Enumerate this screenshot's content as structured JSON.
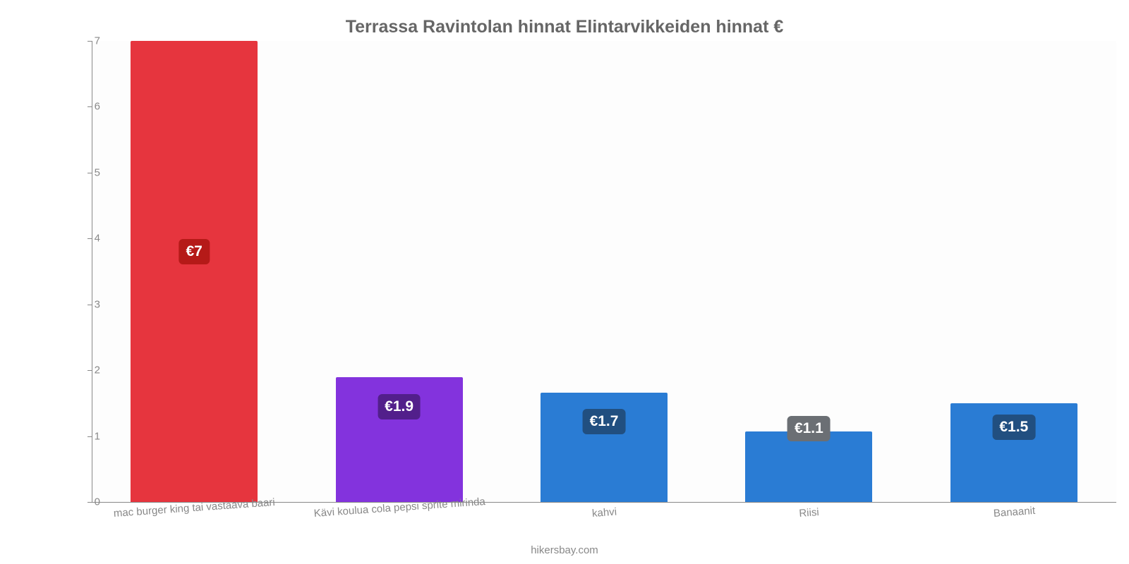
{
  "chart": {
    "type": "bar",
    "title": "Terrassa Ravintolan hinnat Elintarvikkeiden hinnat €",
    "title_color": "#666666",
    "title_fontsize": 25,
    "title_fontweight": "bold",
    "background_color": "#ffffff",
    "plot_background_color": "#fdfdfd",
    "axis_color": "#888888",
    "tick_font_color": "#888888",
    "tick_fontsize": 15,
    "ylim": [
      0,
      7
    ],
    "yticks": [
      0,
      1,
      2,
      3,
      4,
      5,
      6,
      7
    ],
    "bar_width_ratio": 0.62,
    "value_label_fontsize": 21,
    "value_label_color": "#ffffff",
    "bars": [
      {
        "category": "mac burger king tai vastaava baari",
        "value": 7,
        "display": "€7",
        "bar_color": "#e6353e",
        "label_bg": "#b51a18",
        "label_y": 3.8
      },
      {
        "category": "Kävi koulua cola pepsi sprite mirinda",
        "value": 1.9,
        "display": "€1.9",
        "bar_color": "#8333dd",
        "label_bg": "#521f8b",
        "label_y": 1.44
      },
      {
        "category": "kahvi",
        "value": 1.66,
        "display": "€1.7",
        "bar_color": "#2a7cd4",
        "label_bg": "#214f80",
        "label_y": 1.22
      },
      {
        "category": "Riisi",
        "value": 1.07,
        "display": "€1.1",
        "bar_color": "#2a7cd4",
        "label_bg": "#6b6f74",
        "label_y": 1.11
      },
      {
        "category": "Banaanit",
        "value": 1.5,
        "display": "€1.5",
        "bar_color": "#2a7cd4",
        "label_bg": "#214f80",
        "label_y": 1.13
      }
    ],
    "xtick_rotation_deg": -4,
    "credit": "hikersbay.com"
  }
}
